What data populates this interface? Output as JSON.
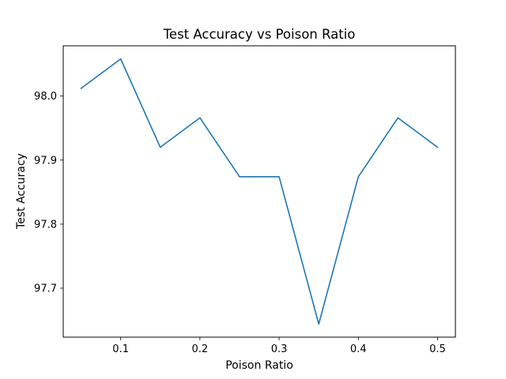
{
  "chart_data": {
    "type": "line",
    "title": "Test Accuracy vs Poison Ratio",
    "xlabel": "Poison Ratio",
    "ylabel": "Test Accuracy",
    "x": [
      0.05,
      0.1,
      0.15,
      0.2,
      0.25,
      0.3,
      0.35,
      0.4,
      0.45,
      0.5
    ],
    "series": [
      {
        "values": [
          98.012,
          98.058,
          97.92,
          97.966,
          97.874,
          97.874,
          97.644,
          97.874,
          97.966,
          97.92
        ],
        "color": "#1f77b4"
      }
    ],
    "xlim": [
      0.0275,
      0.5225
    ],
    "ylim": [
      97.6235,
      98.0785
    ],
    "xticks": [
      0.1,
      0.2,
      0.3,
      0.4,
      0.5
    ],
    "xtick_labels": [
      "0.1",
      "0.2",
      "0.3",
      "0.4",
      "0.5"
    ],
    "yticks": [
      97.7,
      97.8,
      97.9,
      98.0
    ],
    "ytick_labels": [
      "97.7",
      "97.8",
      "97.9",
      "98.0"
    ],
    "grid": false,
    "legend": "none"
  }
}
